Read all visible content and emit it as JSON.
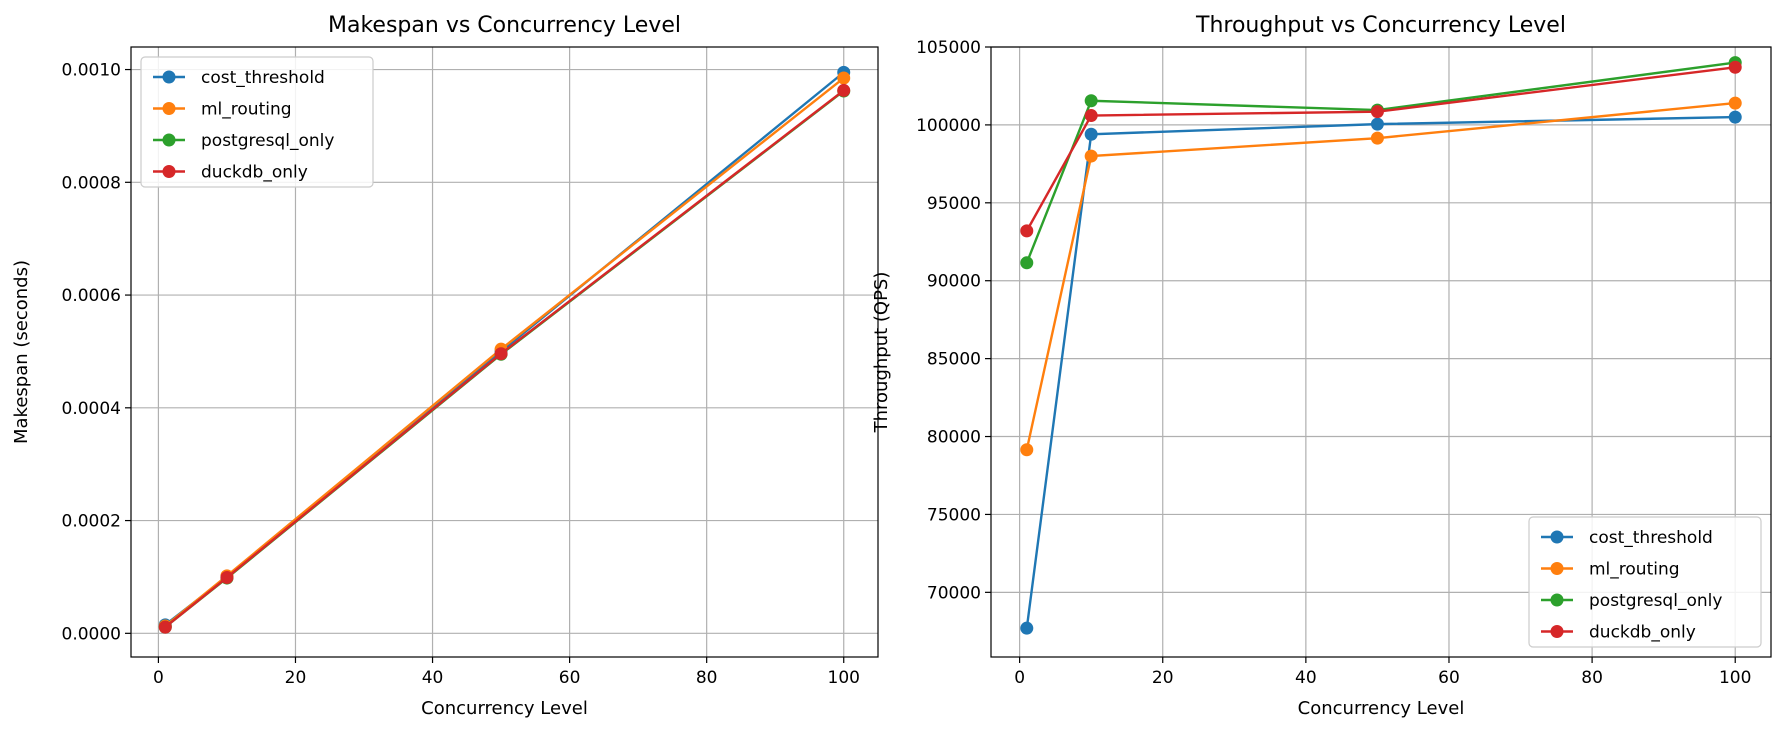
{
  "chart_data": [
    {
      "type": "line",
      "title": "Makespan vs Concurrency Level",
      "xlabel": "Concurrency Level",
      "ylabel": "Makespan (seconds)",
      "xlim": [
        -4,
        105
      ],
      "ylim": [
        -4.2e-05,
        0.00104
      ],
      "xticks": [
        0,
        20,
        40,
        60,
        80,
        100
      ],
      "xtick_labels": [
        "0",
        "20",
        "40",
        "60",
        "80",
        "100"
      ],
      "yticks": [
        0.0,
        0.0002,
        0.0004,
        0.0006,
        0.0008,
        0.001
      ],
      "ytick_labels": [
        "0.0000",
        "0.0002",
        "0.0004",
        "0.0006",
        "0.0008",
        "0.0010"
      ],
      "grid": true,
      "legend_loc": "upper left",
      "x": [
        1,
        10,
        50,
        100
      ],
      "series": [
        {
          "name": "cost_threshold",
          "color": "#1f77b4",
          "values": [
            1.5e-05,
            0.0001,
            0.0005,
            0.000995
          ]
        },
        {
          "name": "ml_routing",
          "color": "#ff7f0e",
          "values": [
            1.3e-05,
            0.000102,
            0.000504,
            0.000985
          ]
        },
        {
          "name": "postgresql_only",
          "color": "#2ca02c",
          "values": [
            1.1e-05,
            9.8e-05,
            0.000495,
            0.000962
          ]
        },
        {
          "name": "duckdb_only",
          "color": "#d62728",
          "values": [
            1.1e-05,
            9.9e-05,
            0.000496,
            0.000963
          ]
        }
      ]
    },
    {
      "type": "line",
      "title": "Throughput vs Concurrency Level",
      "xlabel": "Concurrency Level",
      "ylabel": "Throughput (QPS)",
      "xlim": [
        -4,
        105
      ],
      "ylim": [
        65850,
        105000
      ],
      "xticks": [
        0,
        20,
        40,
        60,
        80,
        100
      ],
      "xtick_labels": [
        "0",
        "20",
        "40",
        "60",
        "80",
        "100"
      ],
      "yticks": [
        70000,
        75000,
        80000,
        85000,
        90000,
        95000,
        100000,
        105000
      ],
      "ytick_labels": [
        "70000",
        "75000",
        "80000",
        "85000",
        "90000",
        "95000",
        "100000",
        "105000"
      ],
      "grid": true,
      "legend_loc": "lower right",
      "x": [
        1,
        10,
        50,
        100
      ],
      "series": [
        {
          "name": "cost_threshold",
          "color": "#1f77b4",
          "values": [
            67700,
            99400,
            100050,
            100500
          ]
        },
        {
          "name": "ml_routing",
          "color": "#ff7f0e",
          "values": [
            79150,
            98000,
            99150,
            101400
          ]
        },
        {
          "name": "postgresql_only",
          "color": "#2ca02c",
          "values": [
            91150,
            101550,
            100950,
            104000
          ]
        },
        {
          "name": "duckdb_only",
          "color": "#d62728",
          "values": [
            93200,
            100600,
            100850,
            103700
          ]
        }
      ]
    }
  ]
}
